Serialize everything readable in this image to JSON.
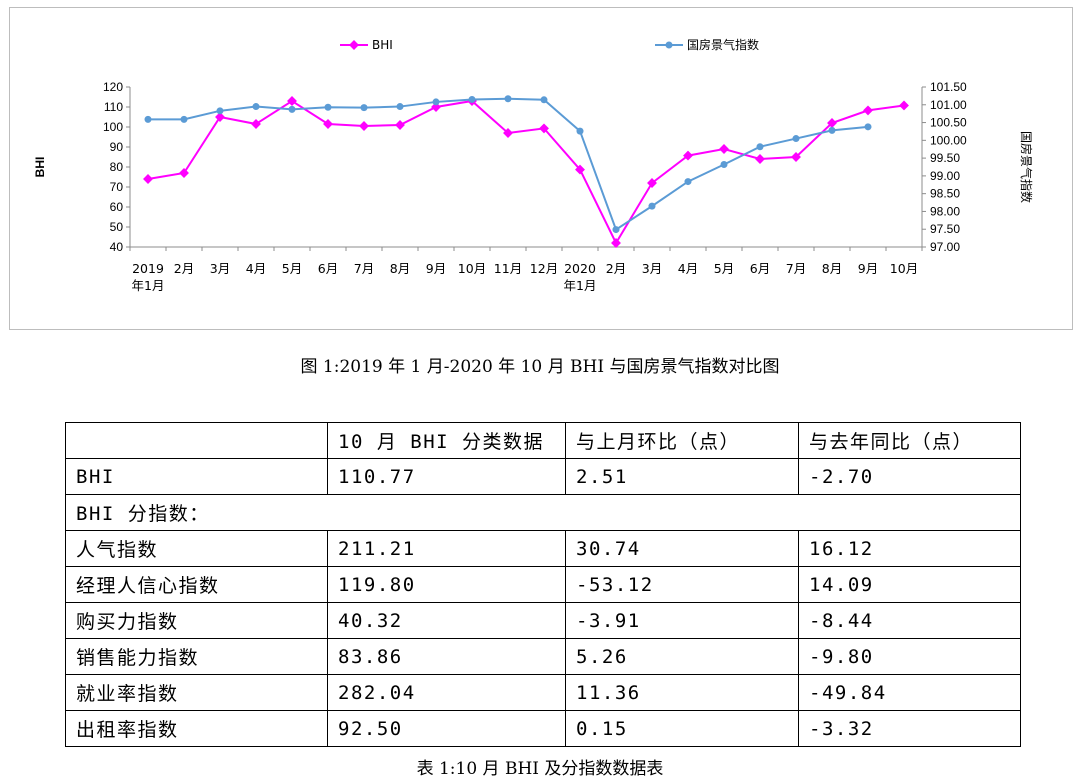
{
  "chart_data": {
    "type": "line",
    "categories": [
      [
        "2019",
        "年1月"
      ],
      [
        "2月"
      ],
      [
        "3月"
      ],
      [
        "4月"
      ],
      [
        "5月"
      ],
      [
        "6月"
      ],
      [
        "7月"
      ],
      [
        "8月"
      ],
      [
        "9月"
      ],
      [
        "10月"
      ],
      [
        "11月"
      ],
      [
        "12月"
      ],
      [
        "2020",
        "年1月"
      ],
      [
        "2月"
      ],
      [
        "3月"
      ],
      [
        "4月"
      ],
      [
        "5月"
      ],
      [
        "6月"
      ],
      [
        "7月"
      ],
      [
        "8月"
      ],
      [
        "9月"
      ],
      [
        "10月"
      ]
    ],
    "ylabel": "BHI",
    "y2label": "国房景气指数",
    "ylim": [
      40,
      120
    ],
    "yticks": [
      40,
      50,
      60,
      70,
      80,
      90,
      100,
      110,
      120
    ],
    "y2lim": [
      97.0,
      101.5
    ],
    "y2ticks": [
      "97.00",
      "97.50",
      "98.00",
      "98.50",
      "99.00",
      "99.50",
      "100.00",
      "100.50",
      "101.00",
      "101.50"
    ],
    "legend_position": "top",
    "grid": false,
    "series": [
      {
        "name": "BHI",
        "axis": "left",
        "color": "#ff00ff",
        "values": [
          74.0,
          77.0,
          105.0,
          101.5,
          113.0,
          101.5,
          100.5,
          101.0,
          110.0,
          113.0,
          97.0,
          99.3,
          78.7,
          42.0,
          72.0,
          85.7,
          89.0,
          84.0,
          85.0,
          102.0,
          108.3,
          110.77
        ]
      },
      {
        "name": "国房景气指数",
        "axis": "right",
        "color": "#5b9bd5",
        "values": [
          100.59,
          100.59,
          100.83,
          100.95,
          100.87,
          100.93,
          100.92,
          100.95,
          101.08,
          101.15,
          101.17,
          101.14,
          100.26,
          97.49,
          98.15,
          98.84,
          99.32,
          99.82,
          100.05,
          100.28,
          100.38,
          null
        ]
      }
    ]
  },
  "figure_caption": "图 1:2019 年 1 月-2020 年 10 月 BHI 与国房景气指数对比图",
  "table": {
    "header": [
      "",
      "10 月 BHI 分类数据",
      "与上月环比（点）",
      "与去年同比（点）"
    ],
    "bhi_row": [
      "BHI",
      "110.77",
      "2.51",
      "-2.70"
    ],
    "sub_heading": "BHI 分指数：",
    "rows": [
      [
        "人气指数",
        "211.21",
        "30.74",
        "16.12"
      ],
      [
        "经理人信心指数",
        "119.80",
        "-53.12",
        "14.09"
      ],
      [
        "购买力指数",
        "40.32",
        "-3.91",
        "-8.44"
      ],
      [
        "销售能力指数",
        "83.86",
        "5.26",
        "-9.80"
      ],
      [
        "就业率指数",
        "282.04",
        "11.36",
        "-49.84"
      ],
      [
        "出租率指数",
        "92.50",
        "0.15",
        "-3.32"
      ]
    ]
  },
  "table_caption": "表 1:10 月 BHI 及分指数数据表"
}
